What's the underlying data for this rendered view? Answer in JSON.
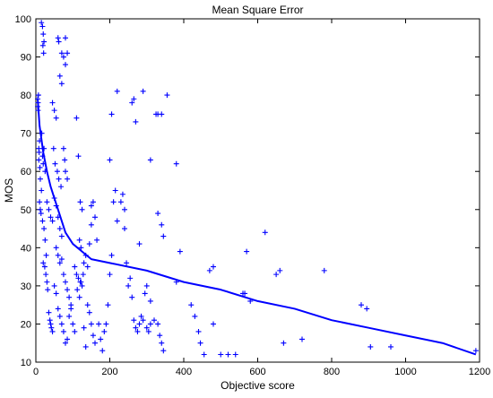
{
  "chart_data": {
    "type": "scatter",
    "title": "Mean Square Error",
    "xlabel": "Objective score",
    "ylabel": "MOS",
    "xlim": [
      0,
      1200
    ],
    "ylim": [
      10,
      100
    ],
    "xticks": [
      0,
      200,
      400,
      600,
      800,
      1000,
      1200
    ],
    "yticks": [
      10,
      20,
      30,
      40,
      50,
      60,
      70,
      80,
      90,
      100
    ],
    "grid": false,
    "legend": "none",
    "marker_color": "#0000ff",
    "line_color": "#0000ff",
    "series": [
      {
        "type": "scatter",
        "marker": "plus",
        "points": [
          [
            5,
            79
          ],
          [
            5,
            77
          ],
          [
            6,
            78
          ],
          [
            7,
            80
          ],
          [
            6,
            76
          ],
          [
            8,
            66
          ],
          [
            9,
            65
          ],
          [
            10,
            68
          ],
          [
            8,
            63
          ],
          [
            11,
            61
          ],
          [
            12,
            58
          ],
          [
            15,
            99
          ],
          [
            18,
            98
          ],
          [
            20,
            96
          ],
          [
            22,
            94
          ],
          [
            19,
            93
          ],
          [
            21,
            91
          ],
          [
            16,
            70
          ],
          [
            18,
            64
          ],
          [
            20,
            62
          ],
          [
            22,
            66
          ],
          [
            25,
            60
          ],
          [
            10,
            52
          ],
          [
            12,
            50
          ],
          [
            14,
            49
          ],
          [
            18,
            47
          ],
          [
            22,
            45
          ],
          [
            25,
            42
          ],
          [
            28,
            38
          ],
          [
            20,
            36
          ],
          [
            24,
            35
          ],
          [
            27,
            33
          ],
          [
            30,
            31
          ],
          [
            32,
            29
          ],
          [
            35,
            23
          ],
          [
            38,
            21
          ],
          [
            40,
            20
          ],
          [
            42,
            19
          ],
          [
            45,
            18
          ],
          [
            15,
            55
          ],
          [
            30,
            52
          ],
          [
            35,
            50
          ],
          [
            40,
            48
          ],
          [
            45,
            47
          ],
          [
            50,
            53
          ],
          [
            55,
            51
          ],
          [
            60,
            48
          ],
          [
            65,
            45
          ],
          [
            70,
            43
          ],
          [
            60,
            95
          ],
          [
            62,
            94
          ],
          [
            70,
            91
          ],
          [
            75,
            90
          ],
          [
            80,
            95
          ],
          [
            85,
            91
          ],
          [
            80,
            88
          ],
          [
            65,
            85
          ],
          [
            70,
            83
          ],
          [
            45,
            78
          ],
          [
            50,
            76
          ],
          [
            55,
            74
          ],
          [
            48,
            66
          ],
          [
            52,
            62
          ],
          [
            58,
            60
          ],
          [
            62,
            58
          ],
          [
            68,
            56
          ],
          [
            75,
            66
          ],
          [
            78,
            63
          ],
          [
            80,
            60
          ],
          [
            85,
            58
          ],
          [
            55,
            40
          ],
          [
            60,
            38
          ],
          [
            65,
            36
          ],
          [
            70,
            37
          ],
          [
            75,
            33
          ],
          [
            80,
            31
          ],
          [
            85,
            29
          ],
          [
            90,
            27
          ],
          [
            95,
            25
          ],
          [
            50,
            30
          ],
          [
            55,
            28
          ],
          [
            60,
            24
          ],
          [
            65,
            22
          ],
          [
            70,
            20
          ],
          [
            75,
            18
          ],
          [
            80,
            15
          ],
          [
            85,
            16
          ],
          [
            90,
            22
          ],
          [
            95,
            24
          ],
          [
            100,
            20
          ],
          [
            105,
            18
          ],
          [
            110,
            74
          ],
          [
            115,
            64
          ],
          [
            120,
            52
          ],
          [
            125,
            50
          ],
          [
            118,
            42
          ],
          [
            122,
            40
          ],
          [
            110,
            33
          ],
          [
            115,
            32
          ],
          [
            120,
            31
          ],
          [
            125,
            30
          ],
          [
            112,
            29
          ],
          [
            118,
            27
          ],
          [
            122,
            31
          ],
          [
            128,
            33
          ],
          [
            105,
            35
          ],
          [
            130,
            36
          ],
          [
            135,
            38
          ],
          [
            140,
            35
          ],
          [
            145,
            41
          ],
          [
            150,
            46
          ],
          [
            150,
            51
          ],
          [
            155,
            52
          ],
          [
            160,
            48
          ],
          [
            165,
            42
          ],
          [
            140,
            25
          ],
          [
            145,
            23
          ],
          [
            150,
            20
          ],
          [
            155,
            17
          ],
          [
            160,
            15
          ],
          [
            130,
            19
          ],
          [
            135,
            14
          ],
          [
            170,
            20
          ],
          [
            175,
            16
          ],
          [
            180,
            13
          ],
          [
            185,
            18
          ],
          [
            190,
            20
          ],
          [
            195,
            25
          ],
          [
            200,
            33
          ],
          [
            205,
            38
          ],
          [
            210,
            52
          ],
          [
            215,
            55
          ],
          [
            220,
            47
          ],
          [
            200,
            63
          ],
          [
            205,
            75
          ],
          [
            220,
            81
          ],
          [
            230,
            52
          ],
          [
            235,
            54
          ],
          [
            240,
            50
          ],
          [
            240,
            45
          ],
          [
            245,
            36
          ],
          [
            250,
            30
          ],
          [
            255,
            32
          ],
          [
            260,
            27
          ],
          [
            265,
            21
          ],
          [
            270,
            19
          ],
          [
            275,
            18
          ],
          [
            280,
            20
          ],
          [
            285,
            22
          ],
          [
            290,
            21
          ],
          [
            295,
            28
          ],
          [
            300,
            19
          ],
          [
            305,
            18
          ],
          [
            310,
            20
          ],
          [
            320,
            21
          ],
          [
            330,
            20
          ],
          [
            335,
            17
          ],
          [
            340,
            15
          ],
          [
            345,
            13
          ],
          [
            260,
            78
          ],
          [
            265,
            79
          ],
          [
            270,
            73
          ],
          [
            290,
            81
          ],
          [
            325,
            75
          ],
          [
            330,
            75
          ],
          [
            340,
            75
          ],
          [
            355,
            80
          ],
          [
            310,
            63
          ],
          [
            330,
            49
          ],
          [
            340,
            46
          ],
          [
            345,
            43
          ],
          [
            280,
            41
          ],
          [
            300,
            30
          ],
          [
            310,
            26
          ],
          [
            380,
            62
          ],
          [
            390,
            39
          ],
          [
            380,
            31
          ],
          [
            420,
            25
          ],
          [
            430,
            22
          ],
          [
            440,
            18
          ],
          [
            445,
            15
          ],
          [
            455,
            12
          ],
          [
            480,
            20
          ],
          [
            500,
            12
          ],
          [
            520,
            12
          ],
          [
            540,
            12
          ],
          [
            470,
            34
          ],
          [
            480,
            35
          ],
          [
            560,
            28
          ],
          [
            565,
            28
          ],
          [
            570,
            39
          ],
          [
            580,
            26
          ],
          [
            620,
            44
          ],
          [
            650,
            33
          ],
          [
            660,
            34
          ],
          [
            670,
            15
          ],
          [
            720,
            16
          ],
          [
            780,
            34
          ],
          [
            880,
            25
          ],
          [
            895,
            24
          ],
          [
            905,
            14
          ],
          [
            960,
            14
          ],
          [
            1190,
            13
          ]
        ]
      },
      {
        "type": "line",
        "points": [
          [
            5,
            79
          ],
          [
            10,
            72
          ],
          [
            20,
            65
          ],
          [
            30,
            60
          ],
          [
            40,
            56
          ],
          [
            50,
            53
          ],
          [
            60,
            50
          ],
          [
            80,
            44
          ],
          [
            100,
            41
          ],
          [
            125,
            39
          ],
          [
            150,
            37
          ],
          [
            200,
            36
          ],
          [
            300,
            34
          ],
          [
            400,
            31
          ],
          [
            500,
            29
          ],
          [
            600,
            26
          ],
          [
            700,
            24
          ],
          [
            800,
            21
          ],
          [
            900,
            19
          ],
          [
            1000,
            17
          ],
          [
            1100,
            15
          ],
          [
            1190,
            12
          ]
        ]
      }
    ]
  }
}
